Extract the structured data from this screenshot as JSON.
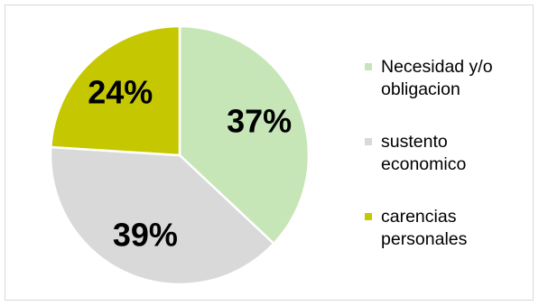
{
  "chart_data": {
    "type": "pie",
    "title": "",
    "slices": [
      {
        "label": "Necesidad y/o\nobligacion",
        "value": 37,
        "value_label": "37%",
        "color": "#c6e6b8"
      },
      {
        "label": "sustento\neconomico",
        "value": 39,
        "value_label": "39%",
        "color": "#d9d9d9"
      },
      {
        "label": "carencias\npersonales",
        "value": 24,
        "value_label": "24%",
        "color": "#c5c800"
      }
    ],
    "start_angle": "12 o'clock",
    "direction": "clockwise",
    "legend_position": "right"
  }
}
